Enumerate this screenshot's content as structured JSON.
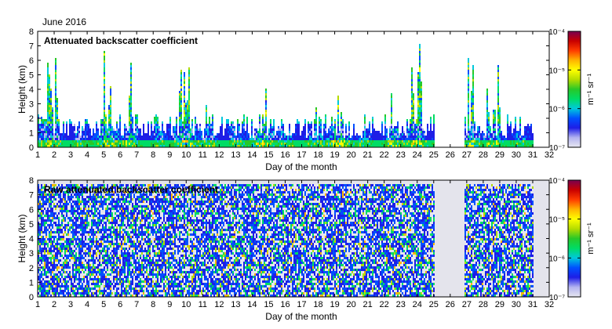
{
  "header": {
    "date_label": "June 2016"
  },
  "colors": {
    "colormap": [
      "#e6e6f0",
      "#b4b4f0",
      "#1e1ee6",
      "#0050ff",
      "#00c8dc",
      "#00dc64",
      "#28c828",
      "#b4dc00",
      "#ffff00",
      "#ffb400",
      "#ff3c00",
      "#c80000",
      "#780050"
    ],
    "missing_data": "#ffffff",
    "axis": "#000000"
  },
  "chart_data": [
    {
      "type": "heatmap",
      "title": "Attenuated backscatter coefficient",
      "xlabel": "Day of the month",
      "ylabel": "Height (km)",
      "x_ticks": [
        "1",
        "2",
        "3",
        "4",
        "5",
        "6",
        "7",
        "8",
        "9",
        "10",
        "11",
        "12",
        "13",
        "14",
        "15",
        "16",
        "17",
        "18",
        "19",
        "20",
        "21",
        "22",
        "23",
        "24",
        "25",
        "26",
        "27",
        "28",
        "29",
        "30",
        "31",
        "32"
      ],
      "y_ticks": [
        "0",
        "1",
        "2",
        "3",
        "4",
        "5",
        "6",
        "7",
        "8"
      ],
      "xlim": [
        1,
        32
      ],
      "ylim": [
        0,
        8
      ],
      "missing_days": [
        [
          25.0,
          26.8
        ]
      ],
      "colorbar": {
        "label": "m⁻¹ sr⁻¹",
        "scale": "log",
        "tick_labels": [
          "10⁻⁴",
          "10⁻⁵",
          "10⁻⁶",
          "10⁻⁷"
        ],
        "range": [
          1e-07,
          0.0001
        ]
      }
    },
    {
      "type": "heatmap",
      "title": "Raw attenuated backscatter coefficient",
      "xlabel": "Day of the month",
      "ylabel": "Height (km)",
      "x_ticks": [
        "1",
        "2",
        "3",
        "4",
        "5",
        "6",
        "7",
        "8",
        "9",
        "10",
        "11",
        "12",
        "13",
        "14",
        "15",
        "16",
        "17",
        "18",
        "19",
        "20",
        "21",
        "22",
        "23",
        "24",
        "25",
        "26",
        "27",
        "28",
        "29",
        "30",
        "31",
        "32"
      ],
      "y_ticks": [
        "0",
        "1",
        "2",
        "3",
        "4",
        "5",
        "6",
        "7",
        "8"
      ],
      "xlim": [
        1,
        32
      ],
      "ylim": [
        0,
        8
      ],
      "missing_days": [
        [
          25.0,
          26.8
        ]
      ],
      "colorbar": {
        "label": "m⁻¹ sr⁻¹",
        "scale": "log",
        "tick_labels": [
          "10⁻⁴",
          "10⁻⁵",
          "10⁻⁶",
          "10⁻⁷"
        ],
        "range": [
          1e-07,
          0.0001
        ]
      }
    }
  ]
}
